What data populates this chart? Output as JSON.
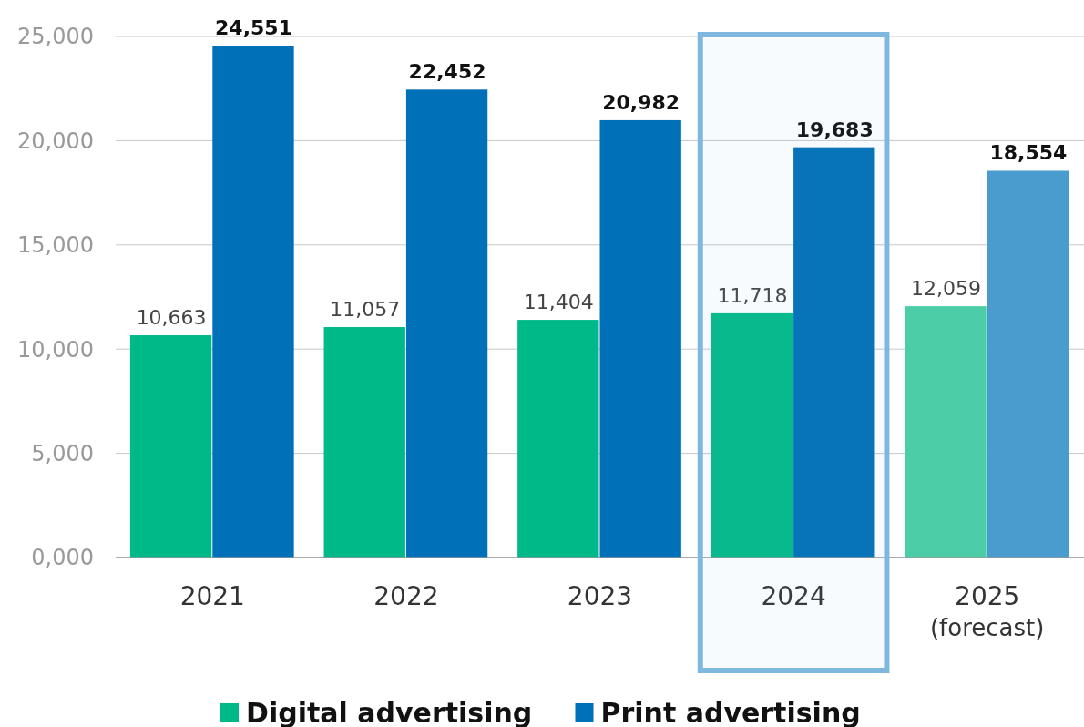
{
  "chart_data": {
    "type": "bar",
    "categories": [
      "2021",
      "2022",
      "2023",
      "2024",
      "2025\n(forecast)"
    ],
    "series": [
      {
        "name": "Digital advertising",
        "color": "#00b989",
        "colors": [
          "#00b989",
          "#00b989",
          "#00b989",
          "#00b989",
          "#4ccda8"
        ],
        "values": [
          10663,
          11057,
          11404,
          11718,
          12059
        ],
        "value_labels": [
          "10,663",
          "11,057",
          "11,404",
          "11,718",
          "12,059"
        ]
      },
      {
        "name": "Print advertising",
        "color": "#0070b8",
        "colors": [
          "#0070b8",
          "#0070b8",
          "#0070b8",
          "#0070b8",
          "#4a9ccf"
        ],
        "values": [
          24551,
          22452,
          20982,
          19683,
          18554
        ],
        "value_labels": [
          "24,551",
          "22,452",
          "20,982",
          "19,683",
          "18,554"
        ]
      }
    ],
    "ylim": [
      0,
      25000
    ],
    "yticks": [
      {
        "value": 0,
        "label": "0,000"
      },
      {
        "value": 5000,
        "label": "5,000"
      },
      {
        "value": 10000,
        "label": "10,000"
      },
      {
        "value": 15000,
        "label": "15,000"
      },
      {
        "value": 20000,
        "label": "20,000"
      },
      {
        "value": 25000,
        "label": "25,000"
      }
    ],
    "grid": "y",
    "legend": "bottom",
    "bands": [
      {
        "axis": "x",
        "from": "2024",
        "to": "2024",
        "color": "#7fb8de"
      }
    ]
  }
}
